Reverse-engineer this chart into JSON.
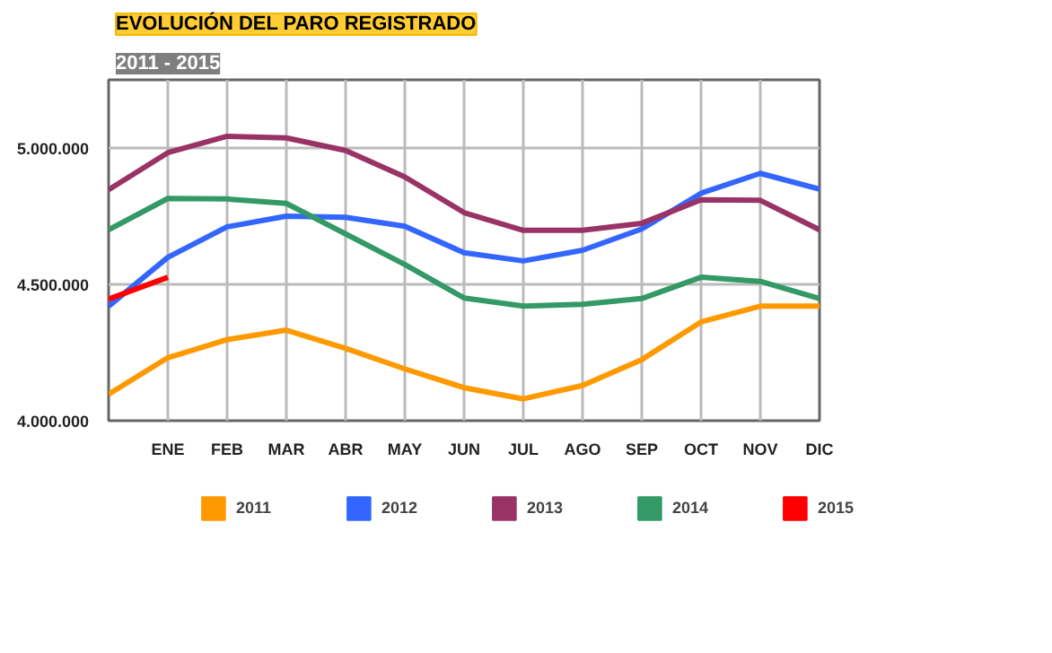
{
  "chart_data": {
    "type": "line",
    "title": "EVOLUCIÓN DEL PARO REGISTRADO",
    "subtitle": "2011 - 2015",
    "categories": [
      null,
      "ENE",
      "FEB",
      "MAR",
      "ABR",
      "MAY",
      "JUN",
      "JUL",
      "AGO",
      "SEP",
      "OCT",
      "NOV",
      "DIC"
    ],
    "series": [
      {
        "name": "2011",
        "color": "#ff9900",
        "values": [
          4097000,
          4231000,
          4297000,
          4332000,
          4265000,
          4190000,
          4121000,
          4080000,
          4129000,
          4224000,
          4362000,
          4420000,
          4420000
        ]
      },
      {
        "name": "2012",
        "color": "#3366ff",
        "values": [
          4420000,
          4599000,
          4711000,
          4750000,
          4746000,
          4713000,
          4616000,
          4586000,
          4625000,
          4703000,
          4834000,
          4907000,
          4849000
        ]
      },
      {
        "name": "2013",
        "color": "#993366",
        "values": [
          4847000,
          4983000,
          5043000,
          5037000,
          4991000,
          4894000,
          4763000,
          4698000,
          4698000,
          4724000,
          4810000,
          4808000,
          4700000
        ]
      },
      {
        "name": "2014",
        "color": "#339966",
        "values": [
          4700000,
          4815000,
          4813000,
          4797000,
          4685000,
          4573000,
          4450000,
          4420000,
          4427000,
          4448000,
          4526000,
          4511000,
          4448000
        ]
      },
      {
        "name": "2015",
        "color": "#ff0000",
        "values": [
          4446000,
          4526000,
          null,
          null,
          null,
          null,
          null,
          null,
          null,
          null,
          null,
          null,
          null
        ]
      }
    ],
    "ylim": [
      4000000,
      5250000
    ],
    "yticks": [
      {
        "value": 4000000,
        "label": "4.000.000"
      },
      {
        "value": 4500000,
        "label": "4.500.000"
      },
      {
        "value": 5000000,
        "label": "5.000.000"
      }
    ],
    "grid": true,
    "legend": "bottom",
    "marker": "none",
    "line_style": "solid"
  }
}
